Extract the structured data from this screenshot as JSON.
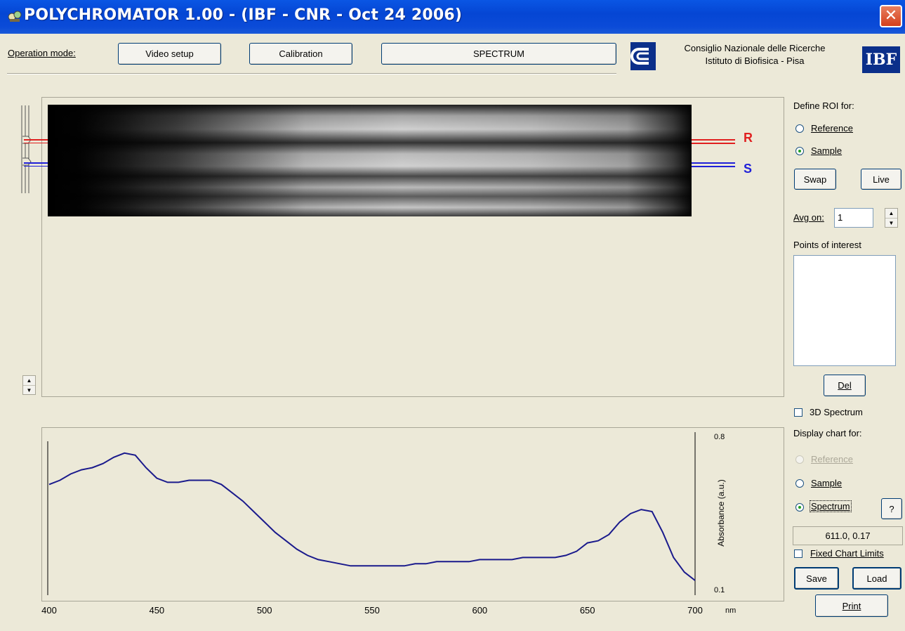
{
  "window": {
    "title": "POLYCHROMATOR 1.00 - (IBF - CNR - Oct 24 2006)",
    "close_glyph": "✕"
  },
  "toolbar": {
    "operation_mode_label": "Operation mode:",
    "video_setup_label": "Video setup",
    "calibration_label": "Calibration",
    "mode_display": "SPECTRUM"
  },
  "institution": {
    "line1": "Consiglio Nazionale delle Ricerche",
    "line2": "Istituto di Biofisica - Pisa",
    "logo_cnr": "cnr-logo-icon",
    "logo_ibf": "IBF"
  },
  "image_view": {
    "roi_reference_label": "R",
    "roi_sample_label": "S",
    "roi_reference_color": "#e02020",
    "roi_sample_color": "#2020d8"
  },
  "roi_panel": {
    "define_roi_label": "Define ROI for:",
    "reference_label": "Reference",
    "sample_label": "Sample",
    "selected": "Sample",
    "swap_label": "Swap",
    "live_label": "Live",
    "avg_on_label": "Avg on:",
    "avg_on_value": "1",
    "points_of_interest_label": "Points of interest",
    "del_label": "Del",
    "spectrum_3d_label": "3D Spectrum",
    "spectrum_3d_checked": false
  },
  "display_panel": {
    "display_chart_label": "Display chart for:",
    "reference_label": "Reference",
    "sample_label": "Sample",
    "spectrum_label": "Spectrum",
    "selected": "Spectrum",
    "help_label": "?",
    "cursor_readout": "611.0, 0.17",
    "fixed_limits_label": "Fixed Chart Limits",
    "fixed_limits_checked": false,
    "save_label": "Save",
    "load_label": "Load",
    "print_label": "Print"
  },
  "chart_data": {
    "type": "line",
    "xlabel": "nm",
    "ylabel": "Absorbance (a.u.)",
    "xlim": [
      400,
      700
    ],
    "ylim": [
      0.1,
      0.8
    ],
    "x_ticks": [
      400,
      450,
      500,
      550,
      600,
      650,
      700
    ],
    "y_ticks": [
      0.1,
      0.8
    ],
    "y_tick_labels": [
      "0.1",
      "0.8"
    ],
    "line_color": "#1a1a8c",
    "series": [
      {
        "x": [
          400,
          405,
          410,
          415,
          420,
          425,
          430,
          435,
          440,
          445,
          450,
          455,
          460,
          465,
          470,
          475,
          480,
          485,
          490,
          495,
          500,
          505,
          510,
          515,
          520,
          525,
          530,
          535,
          540,
          545,
          550,
          555,
          560,
          565,
          570,
          575,
          580,
          585,
          590,
          595,
          600,
          605,
          610,
          615,
          620,
          625,
          630,
          635,
          640,
          645,
          650,
          655,
          660,
          665,
          670,
          675,
          680,
          685,
          690,
          695,
          700
        ],
        "values": [
          0.59,
          0.61,
          0.64,
          0.66,
          0.67,
          0.69,
          0.72,
          0.74,
          0.73,
          0.67,
          0.62,
          0.6,
          0.6,
          0.61,
          0.61,
          0.61,
          0.59,
          0.55,
          0.51,
          0.46,
          0.41,
          0.36,
          0.32,
          0.28,
          0.25,
          0.23,
          0.22,
          0.21,
          0.2,
          0.2,
          0.2,
          0.2,
          0.2,
          0.2,
          0.21,
          0.21,
          0.22,
          0.22,
          0.22,
          0.22,
          0.23,
          0.23,
          0.23,
          0.23,
          0.24,
          0.24,
          0.24,
          0.24,
          0.25,
          0.27,
          0.31,
          0.32,
          0.35,
          0.41,
          0.45,
          0.47,
          0.46,
          0.36,
          0.24,
          0.17,
          0.13
        ]
      }
    ]
  }
}
